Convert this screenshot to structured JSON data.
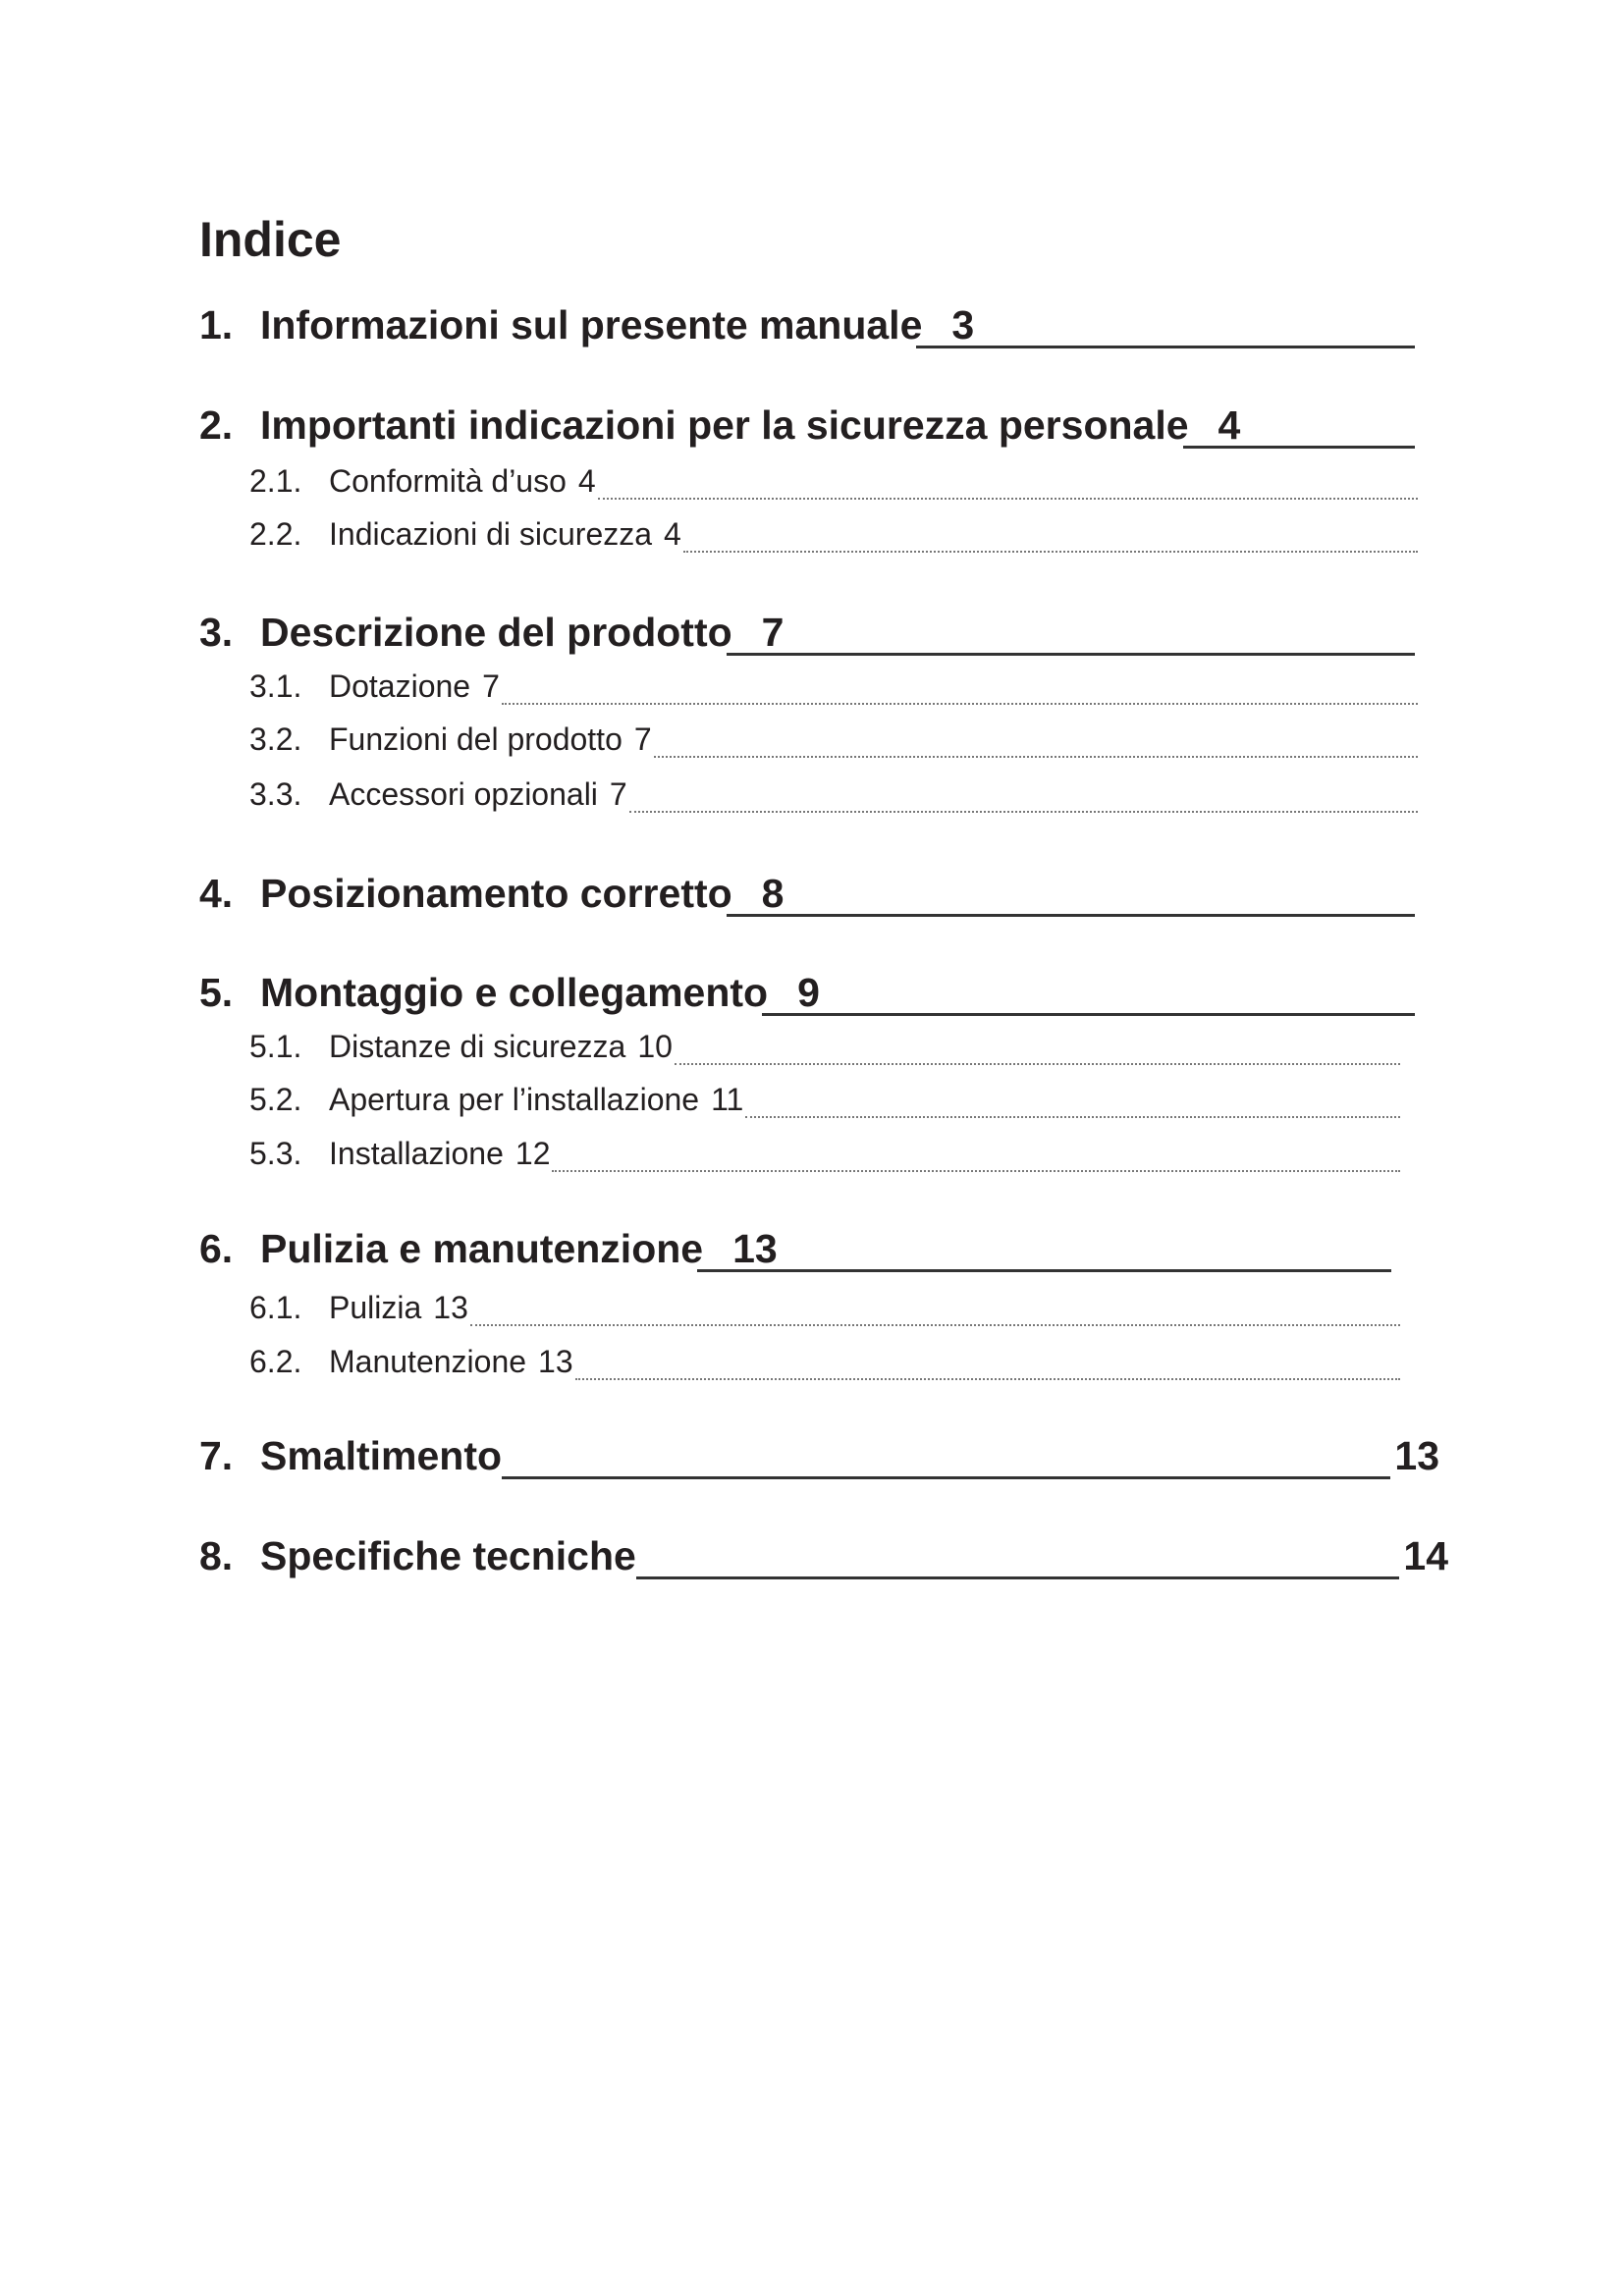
{
  "title": "Indice",
  "entries": [
    {
      "num": "1.",
      "label": "Informazioni sul presente manuale",
      "page": "3"
    },
    {
      "num": "2.",
      "label": "Importanti indicazioni per la sicurezza personale",
      "page": "4"
    },
    {
      "num": "2.1.",
      "label": "Conformità d’uso",
      "page": "4"
    },
    {
      "num": "2.2.",
      "label": "Indicazioni di sicurezza",
      "page": "4"
    },
    {
      "num": "3.",
      "label": "Descrizione del prodotto",
      "page": "7"
    },
    {
      "num": "3.1.",
      "label": "Dotazione",
      "page": "7"
    },
    {
      "num": "3.2.",
      "label": "Funzioni del prodotto",
      "page": "7"
    },
    {
      "num": "3.3.",
      "label": "Accessori opzionali",
      "page": "7"
    },
    {
      "num": "4.",
      "label": "Posizionamento corretto",
      "page": "8"
    },
    {
      "num": "5.",
      "label": "Montaggio e collegamento",
      "page": "9"
    },
    {
      "num": "5.1.",
      "label": "Distanze di sicurezza",
      "page": "10"
    },
    {
      "num": "5.2.",
      "label": "Apertura per l’installazione",
      "page": "11"
    },
    {
      "num": "5.3.",
      "label": "Installazione",
      "page": "12"
    },
    {
      "num": "6.",
      "label": "Pulizia e manutenzione",
      "page": "13"
    },
    {
      "num": "6.1.",
      "label": "Pulizia",
      "page": "13"
    },
    {
      "num": "6.2.",
      "label": "Manutenzione",
      "page": "13"
    },
    {
      "num": "7.",
      "label": "Smaltimento",
      "page": "13"
    },
    {
      "num": "8.",
      "label": "Specifiche tecniche",
      "page": "14"
    }
  ]
}
